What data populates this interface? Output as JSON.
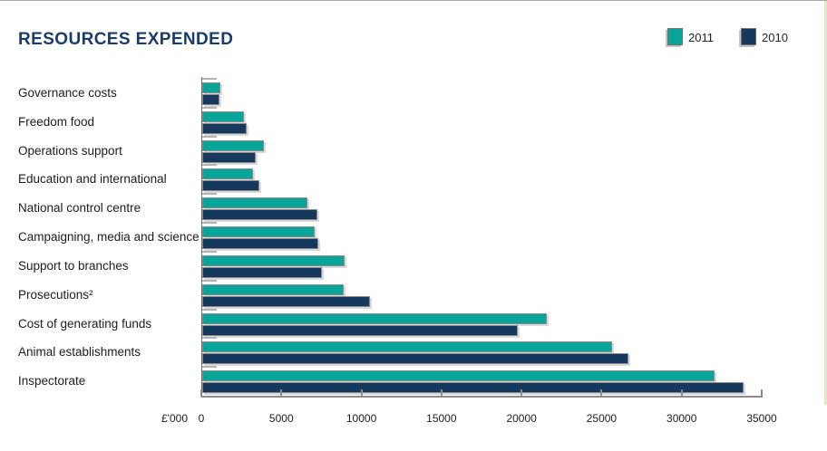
{
  "page": {
    "title": "RESOURCES EXPENDED",
    "unit_label": "£'000"
  },
  "legend": {
    "items": [
      {
        "label": "2011",
        "color": "#0aa59a"
      },
      {
        "label": "2010",
        "color": "#14395c"
      }
    ]
  },
  "chart_data": {
    "type": "bar",
    "orientation": "horizontal",
    "title": "RESOURCES EXPENDED",
    "xlabel": "£'000",
    "xlim": [
      0,
      35000
    ],
    "x_ticks": [
      0,
      5000,
      10000,
      15000,
      20000,
      25000,
      30000,
      35000
    ],
    "grid": false,
    "legend_position": "top-right",
    "categories": [
      "Governance costs",
      "Freedom food",
      "Operations support",
      "Education and international",
      "National control centre",
      "Campaigning, media and science",
      "Support to branches",
      "Prosecutions²",
      "Cost of generating funds",
      "Animal establishments",
      "Inspectorate"
    ],
    "series": [
      {
        "name": "2011",
        "color": "#0aa59a",
        "values": [
          1150,
          2600,
          3850,
          3150,
          6550,
          7000,
          8900,
          8850,
          21500,
          25600,
          32000
        ]
      },
      {
        "name": "2010",
        "color": "#14395c",
        "values": [
          1100,
          2750,
          3350,
          3550,
          7200,
          7250,
          7500,
          10450,
          19700,
          26600,
          33800
        ]
      }
    ]
  },
  "colors": {
    "title": "#1a3c6b",
    "axis": "#8c8c8c",
    "text": "#1c1c1c"
  }
}
